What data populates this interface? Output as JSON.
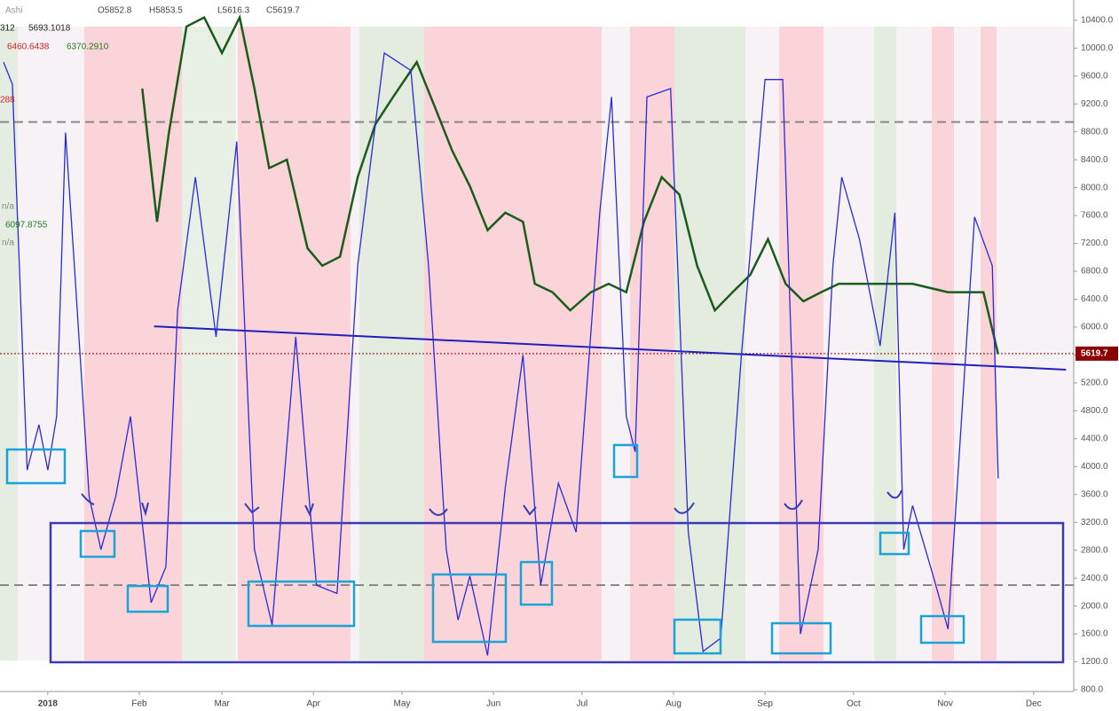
{
  "chart_data": {
    "type": "line",
    "header": {
      "symbol": "Ashi",
      "open": "O5852.8",
      "high": "H5853.5",
      "low": "L5616.3",
      "close": "C5619.7"
    },
    "indicator_labels": [
      {
        "text": "312",
        "color": "#222222"
      },
      {
        "text": "5693.1018",
        "color": "#222222"
      },
      {
        "text": "6460.6438",
        "color": "#d42020"
      },
      {
        "text": "6370.2910",
        "color": "#1f7a1f"
      },
      {
        "text": "288",
        "color": "#d42020"
      },
      {
        "text": "n/a",
        "color": "#888888"
      },
      {
        "text": "6097.8755",
        "color": "#1f7a1f"
      },
      {
        "text": "n/a",
        "color": "#888888"
      }
    ],
    "last_price": {
      "value": 5619.7,
      "label": "5619.7",
      "color": "#8b0000"
    },
    "xlim": [
      -16.2,
      347.6
    ],
    "xticks": [
      {
        "value": 0,
        "label": "2018"
      },
      {
        "value": 31,
        "label": "Feb"
      },
      {
        "value": 59,
        "label": "Mar"
      },
      {
        "value": 90,
        "label": "Apr"
      },
      {
        "value": 120,
        "label": "May"
      },
      {
        "value": 151,
        "label": "Jun"
      },
      {
        "value": 181,
        "label": "Jul"
      },
      {
        "value": 212,
        "label": "Aug"
      },
      {
        "value": 243,
        "label": "Sep"
      },
      {
        "value": 273,
        "label": "Oct"
      },
      {
        "value": 304,
        "label": "Nov"
      },
      {
        "value": 334,
        "label": "Dec"
      }
    ],
    "ylim": [
      775,
      10690
    ],
    "yticks": [
      {
        "value": 800,
        "label": "800.0"
      },
      {
        "value": 1200,
        "label": "1200.0"
      },
      {
        "value": 1600,
        "label": "1600.0"
      },
      {
        "value": 2000,
        "label": "2000.0"
      },
      {
        "value": 2400,
        "label": "2400.0"
      },
      {
        "value": 2800,
        "label": "2800.0"
      },
      {
        "value": 3200,
        "label": "3200.0"
      },
      {
        "value": 3600,
        "label": "3600.0"
      },
      {
        "value": 4000,
        "label": "4000.0"
      },
      {
        "value": 4400,
        "label": "4400.0"
      },
      {
        "value": 4800,
        "label": "4800.0"
      },
      {
        "value": 5200,
        "label": "5200.0"
      },
      {
        "value": 5600,
        "label": "5600.0"
      },
      {
        "value": 6000,
        "label": "6000.0"
      },
      {
        "value": 6400,
        "label": "6400.0"
      },
      {
        "value": 6800,
        "label": "6800.0"
      },
      {
        "value": 7200,
        "label": "7200.0"
      },
      {
        "value": 7600,
        "label": "7600.0"
      },
      {
        "value": 8000,
        "label": "8000.0"
      },
      {
        "value": 8400,
        "label": "8400.0"
      },
      {
        "value": 8800,
        "label": "8800.0"
      },
      {
        "value": 9200,
        "label": "9200.0"
      },
      {
        "value": 9600,
        "label": "9600.0"
      },
      {
        "value": 10000,
        "label": "10000.0"
      },
      {
        "value": 10400,
        "label": "10400.0"
      }
    ],
    "levels": [
      8940,
      2300
    ],
    "trendline": {
      "color": "#2020c0",
      "x": [
        36,
        345
      ],
      "values": [
        6010,
        5390
      ]
    },
    "series": [
      {
        "color": "#1a5c1a",
        "x": [
          32,
          37,
          41,
          47,
          53,
          59,
          65,
          70,
          75,
          81,
          88,
          93,
          99,
          105,
          111,
          117,
          125,
          131,
          137,
          143,
          149,
          155,
          161,
          165,
          171,
          177,
          184,
          190,
          196,
          202,
          208,
          214,
          220,
          226,
          232,
          238,
          244,
          250,
          256,
          262,
          268,
          275,
          281,
          287,
          293,
          299,
          305,
          311,
          317,
          322
        ],
        "values": [
          9420,
          7510,
          8780,
          10310,
          10440,
          9930,
          10440,
          9420,
          8280,
          8400,
          7130,
          6880,
          7010,
          8150,
          8910,
          9300,
          9800,
          9170,
          8530,
          8020,
          7390,
          7640,
          7510,
          6620,
          6500,
          6240,
          6500,
          6620,
          6500,
          7510,
          8150,
          7900,
          6880,
          6240,
          6500,
          6750,
          7260,
          6620,
          6370,
          6500,
          6620,
          6620,
          6620,
          6620,
          6620,
          6560,
          6500,
          6500,
          6500,
          5610
        ]
      },
      {
        "color": "#2a2ad8",
        "x": [
          -15,
          -12,
          -7,
          -3,
          0,
          3,
          6,
          9,
          14,
          18,
          23,
          28,
          35,
          40,
          44,
          50,
          57,
          64,
          70,
          76,
          84,
          91,
          98,
          105,
          114,
          123,
          129,
          135,
          139,
          143,
          149,
          155,
          161,
          167,
          173,
          179,
          187,
          191,
          196,
          199,
          203,
          211,
          217,
          222,
          228,
          235,
          243,
          249,
          255,
          261,
          266,
          269,
          275,
          282,
          287,
          290,
          293,
          300,
          305,
          314,
          320,
          322
        ],
        "values": [
          9800,
          9480,
          3950,
          4600,
          3950,
          4720,
          8790,
          6880,
          3570,
          2810,
          3570,
          4720,
          2050,
          2560,
          6250,
          8150,
          5860,
          8660,
          2810,
          1730,
          5860,
          2300,
          2180,
          6880,
          9930,
          9680,
          6880,
          2810,
          1800,
          2430,
          1290,
          3700,
          5600,
          2300,
          3760,
          3060,
          7640,
          9300,
          4720,
          4210,
          9300,
          9420,
          3060,
          1350,
          1540,
          5600,
          9550,
          9550,
          1600,
          2810,
          6880,
          8150,
          7260,
          5730,
          7640,
          2810,
          3440,
          2430,
          1670,
          7580,
          6880,
          3830
        ]
      }
    ]
  }
}
